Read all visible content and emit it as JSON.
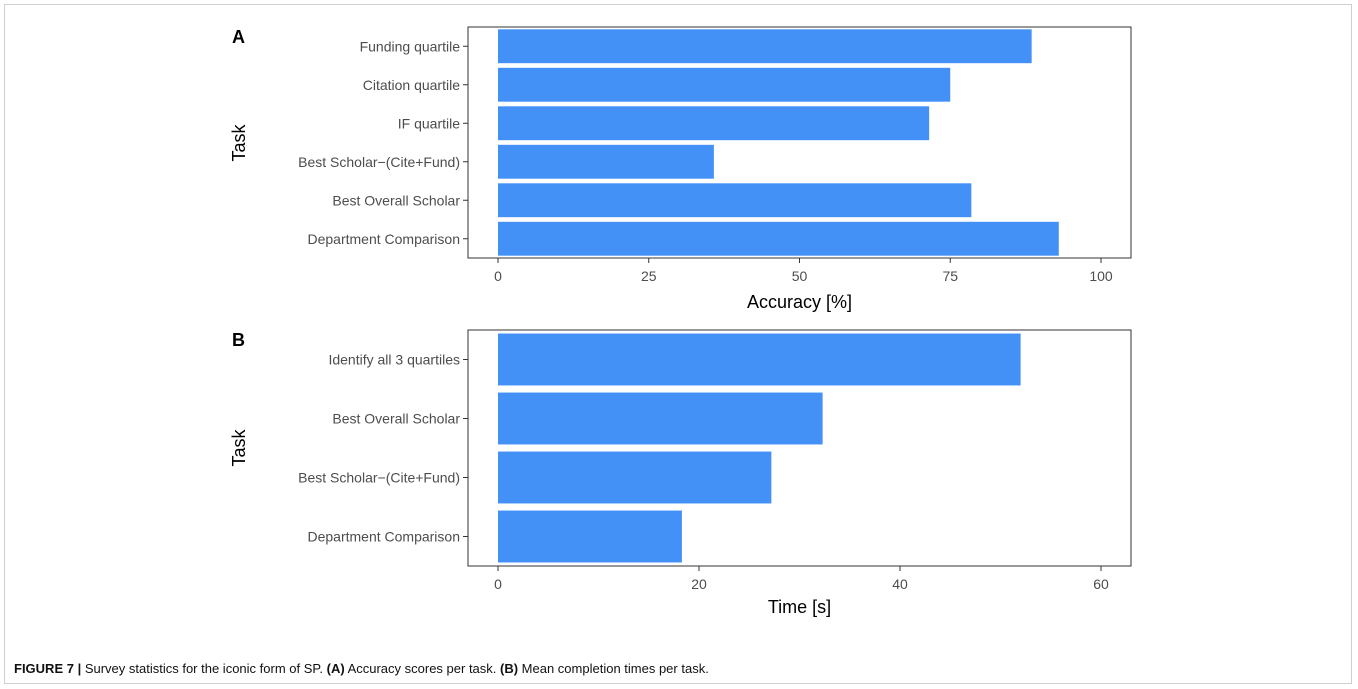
{
  "colors": {
    "bar": "#4391f7",
    "axis": "#333333",
    "tick_text": "#4d4d4d"
  },
  "caption": {
    "label": "FIGURE 7 |",
    "text_1": " Survey statistics for the iconic form of SP. ",
    "tag_a": "(A)",
    "text_2": " Accuracy scores per task. ",
    "tag_b": "(B)",
    "text_3": " Mean completion times per task."
  },
  "chart_data": [
    {
      "panel": "A",
      "type": "bar",
      "orientation": "horizontal",
      "categories": [
        "Funding quartile",
        "Citation quartile",
        "IF quartile",
        "Best Scholar−(Cite+Fund)",
        "Best Overall Scholar",
        "Department Comparison"
      ],
      "values": [
        88.5,
        75,
        71.5,
        35.8,
        78.5,
        93
      ],
      "xlabel": "Accuracy [%]",
      "ylabel": "Task",
      "xlim": [
        0,
        100
      ],
      "xticks": [
        0,
        25,
        50,
        75,
        100
      ],
      "grid": false
    },
    {
      "panel": "B",
      "type": "bar",
      "orientation": "horizontal",
      "categories": [
        "Identify all 3 quartiles",
        "Best Overall Scholar",
        "Best Scholar−(Cite+Fund)",
        "Department Comparison"
      ],
      "values": [
        52,
        32.3,
        27.2,
        18.3
      ],
      "xlabel": "Time [s]",
      "ylabel": "Task",
      "xlim": [
        0,
        60
      ],
      "xticks": [
        0,
        20,
        40,
        60
      ],
      "grid": false
    }
  ]
}
